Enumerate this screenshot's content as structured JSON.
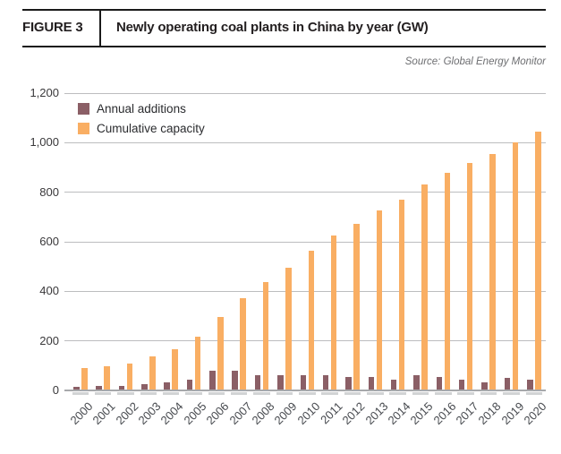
{
  "header": {
    "figure_label": "FIGURE 3",
    "title": "Newly operating coal plants in China by year (GW)"
  },
  "source": "Source: Global Energy Monitor",
  "colors": {
    "annual": "#8B5F66",
    "cumulative": "#F9AE63",
    "gridline": "#BCBDBF",
    "axis": "#A7A9AC",
    "bar_shadow": "#D1D3D4",
    "header_rule": "#1A1A1A"
  },
  "chart_data": {
    "type": "bar",
    "title": "Newly operating coal plants in China by year (GW)",
    "xlabel": "",
    "ylabel": "",
    "ylim": [
      0,
      1200
    ],
    "yticks": [
      0,
      200,
      400,
      600,
      800,
      1000,
      1200
    ],
    "ytick_labels": [
      "0",
      "200",
      "400",
      "600",
      "800",
      "1,000",
      "1,200"
    ],
    "grid": true,
    "legend_position": "top-left",
    "categories": [
      "2000",
      "2001",
      "2002",
      "2003",
      "2004",
      "2005",
      "2006",
      "2007",
      "2008",
      "2009",
      "2010",
      "2011",
      "2012",
      "2013",
      "2014",
      "2015",
      "2016",
      "2017",
      "2018",
      "2019",
      "2020"
    ],
    "series": [
      {
        "name": "Annual additions",
        "color": "#8B5F66",
        "values": [
          16,
          17,
          19,
          26,
          34,
          43,
          81,
          81,
          63,
          60,
          63,
          63,
          53,
          53,
          44,
          63,
          53,
          44,
          33,
          50,
          44
        ]
      },
      {
        "name": "Cumulative capacity",
        "color": "#F9AE63",
        "values": [
          90,
          99,
          108,
          138,
          168,
          216,
          297,
          373,
          439,
          496,
          563,
          625,
          673,
          727,
          770,
          833,
          880,
          918,
          956,
          1002,
          1043
        ]
      }
    ]
  }
}
